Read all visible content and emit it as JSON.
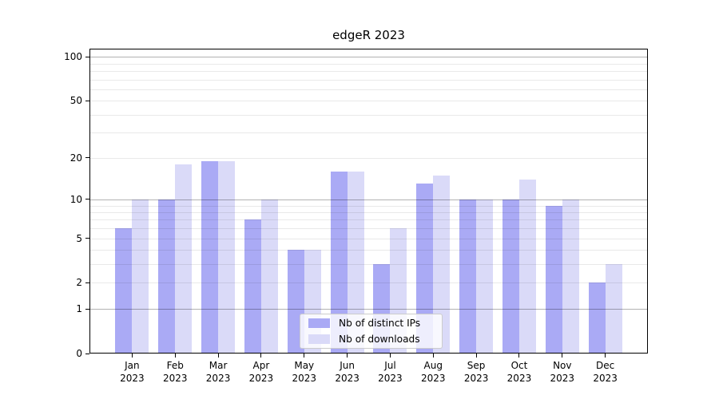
{
  "figure": {
    "background": "#ffffff"
  },
  "chart_data": {
    "type": "bar",
    "title": "edgeR 2023",
    "categories": [
      {
        "month": "Jan",
        "year": "2023"
      },
      {
        "month": "Feb",
        "year": "2023"
      },
      {
        "month": "Mar",
        "year": "2023"
      },
      {
        "month": "Apr",
        "year": "2023"
      },
      {
        "month": "May",
        "year": "2023"
      },
      {
        "month": "Jun",
        "year": "2023"
      },
      {
        "month": "Jul",
        "year": "2023"
      },
      {
        "month": "Aug",
        "year": "2023"
      },
      {
        "month": "Sep",
        "year": "2023"
      },
      {
        "month": "Oct",
        "year": "2023"
      },
      {
        "month": "Nov",
        "year": "2023"
      },
      {
        "month": "Dec",
        "year": "2023"
      }
    ],
    "series": [
      {
        "name": "Nb of distinct IPs",
        "color": "#aaaaf5",
        "values": [
          6,
          10,
          19,
          7,
          4,
          16,
          3,
          13,
          10,
          10,
          9,
          2
        ]
      },
      {
        "name": "Nb of downloads",
        "color": "#dadaf8",
        "values": [
          10,
          18,
          19,
          10,
          4,
          16,
          6,
          15,
          10,
          14,
          10,
          3
        ]
      }
    ],
    "xlabel": "",
    "ylabel": "",
    "y_scale": "log10(1+value)",
    "y_ticks": [
      0,
      1,
      2,
      5,
      10,
      20,
      50,
      100
    ],
    "y_gridlines": {
      "major": [
        1,
        10,
        100
      ],
      "minor": [
        2,
        3,
        4,
        5,
        6,
        7,
        8,
        9,
        20,
        30,
        40,
        50,
        60,
        70,
        80,
        90
      ]
    },
    "ylim": [
      0,
      113.6
    ],
    "grid": "horizontal",
    "legend_position": "bottom-center"
  }
}
